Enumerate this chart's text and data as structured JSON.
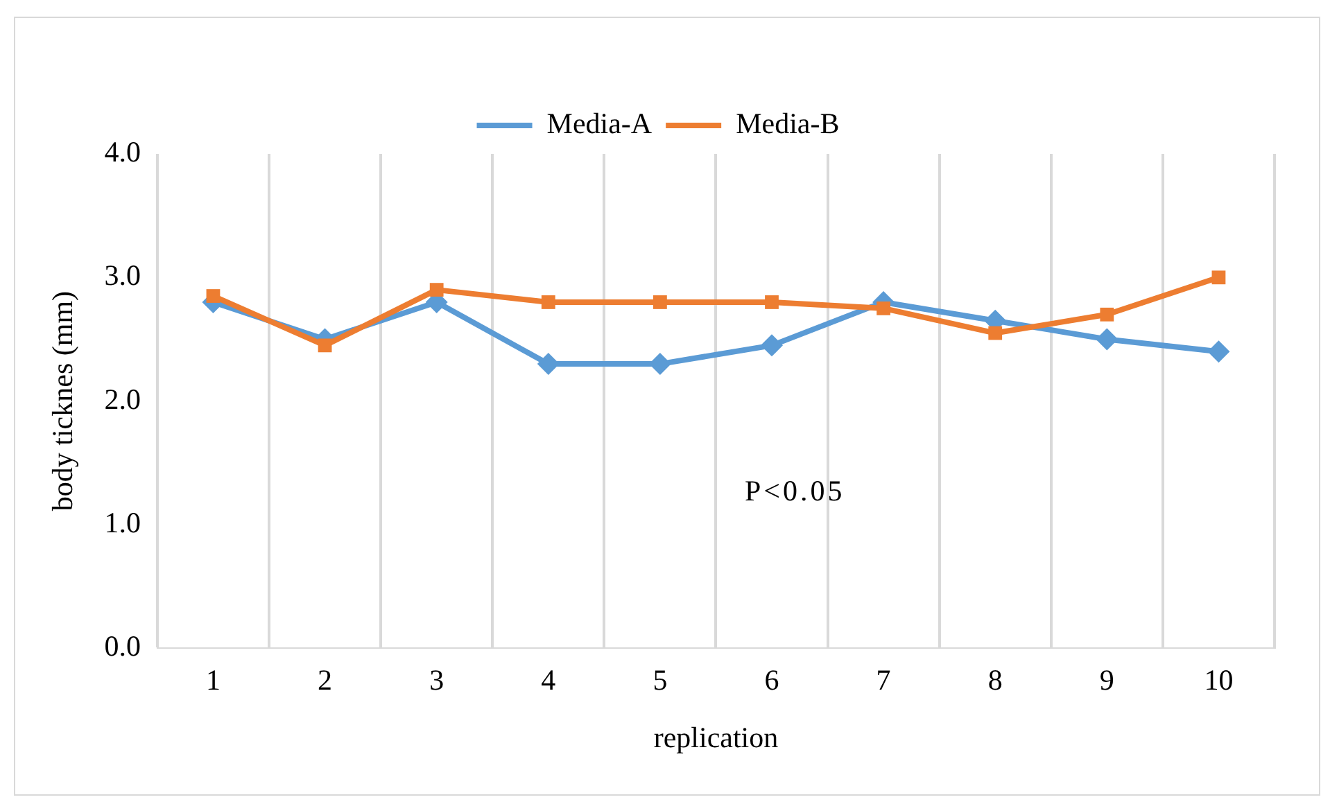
{
  "chart_data": {
    "type": "line",
    "categories": [
      "1",
      "2",
      "3",
      "4",
      "5",
      "6",
      "7",
      "8",
      "9",
      "10"
    ],
    "xlabel": "replication",
    "ylabel": "body ticknes (mm)",
    "ylim": [
      0,
      4
    ],
    "yticks": [
      {
        "value": 0,
        "label": "0.0"
      },
      {
        "value": 1,
        "label": "1.0"
      },
      {
        "value": 2,
        "label": "2.0"
      },
      {
        "value": 3,
        "label": "3.0"
      },
      {
        "value": 4,
        "label": "4.0"
      }
    ],
    "grid": "x",
    "legend": "top",
    "series": [
      {
        "name": "Media-A",
        "color": "#5b9bd5",
        "marker": "diamond",
        "values": [
          2.8,
          2.5,
          2.8,
          2.3,
          2.3,
          2.45,
          2.8,
          2.65,
          2.5,
          2.4
        ]
      },
      {
        "name": "Media-B",
        "color": "#ed7d31",
        "marker": "square",
        "values": [
          2.85,
          2.45,
          2.9,
          2.8,
          2.8,
          2.8,
          2.75,
          2.55,
          2.7,
          3.0
        ]
      }
    ],
    "annotations": [
      "P<0.05"
    ]
  }
}
